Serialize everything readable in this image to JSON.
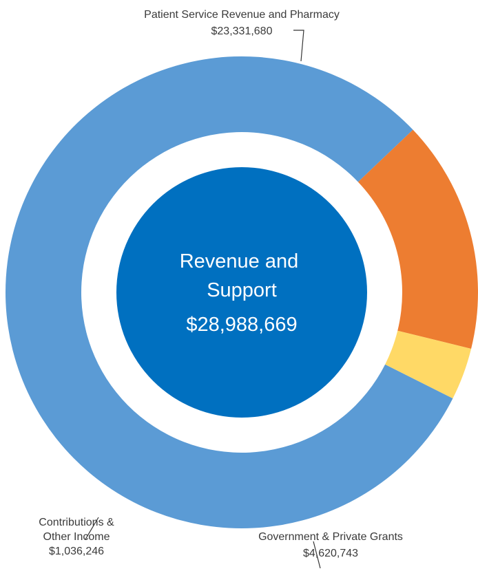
{
  "chart_data": {
    "type": "pie",
    "variant": "donut",
    "center_title": [
      "Revenue and",
      "Support"
    ],
    "center_value": "$28,988,669",
    "slices": [
      {
        "name": "Patient Service Revenue and Pharmacy",
        "value": 23331680,
        "label_lines": [
          "Patient Service Revenue and Pharmacy",
          "$23,331,680"
        ],
        "color": "#5b9bd5"
      },
      {
        "name": "Government & Private Grants",
        "value": 4620743,
        "label_lines": [
          "Government & Private Grants",
          "$4,620,743"
        ],
        "color": "#ed7d31"
      },
      {
        "name": "Contributions & Other Income",
        "value": 1036246,
        "label_lines": [
          "Contributions &",
          "Other Income",
          "$1,036,246"
        ],
        "color": "#ffd966"
      }
    ],
    "colors": {
      "center_disc": "#0070c0",
      "leader_line": "#333333",
      "label_text": "#3a3a3a"
    }
  }
}
